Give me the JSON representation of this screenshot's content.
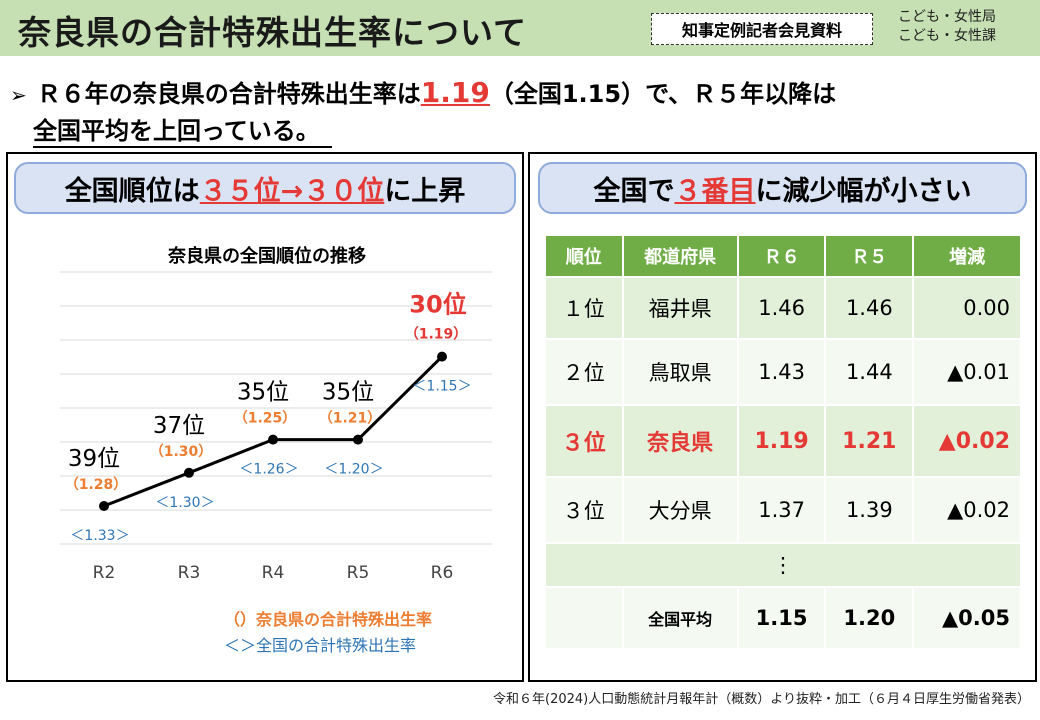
{
  "header": {
    "title": "奈良県の合計特殊出生率について",
    "badge": "知事定例記者会見資料",
    "dept_line1": "こども・女性局",
    "dept_line2": "こども・女性課"
  },
  "bullet": {
    "marker": "➢",
    "text_before": "Ｒ６年の奈良県の合計特殊出生率は",
    "highlight": "1.19",
    "text_after": "（全国1.15）で、Ｒ５年以降は",
    "line2": "全国平均を上回っている。"
  },
  "left_panel": {
    "heading_before": "全国順位は",
    "heading_highlight": "３５位→３０位",
    "heading_after": "に上昇",
    "legend_nara": "（）奈良県の合計特殊出生率",
    "legend_national": "＜＞全国の合計特殊出生率"
  },
  "chart_data": {
    "type": "line",
    "title": "奈良県の全国順位の推移",
    "categories": [
      "R2",
      "R3",
      "R4",
      "R5",
      "R6"
    ],
    "series": [
      {
        "rank_values": [
          39,
          37,
          35,
          35,
          30
        ],
        "rank_labels": [
          "39位",
          "37位",
          "35位",
          "35位",
          "30位"
        ],
        "nara_rate_labels": [
          "（1.28）",
          "（1.30）",
          "（1.25）",
          "（1.21）",
          "（1.19）"
        ],
        "national_rate_labels": [
          "＜1.33＞",
          "＜1.30＞",
          "＜1.26＞",
          "＜1.20＞",
          "＜1.15＞"
        ]
      }
    ],
    "grid": true,
    "line_color": "#000000",
    "nara_color": "#ed7d31",
    "national_color": "#2e75b6",
    "latest_color": "#e53935"
  },
  "right_panel": {
    "heading_before": "全国で",
    "heading_highlight": "３番目",
    "heading_after": "に減少幅が小さい",
    "columns": [
      "順位",
      "都道府県",
      "Ｒ６",
      "Ｒ５",
      "増減"
    ],
    "rows": [
      {
        "rank": "１位",
        "pref": "福井県",
        "r6": "1.46",
        "r5": "1.46",
        "diff": "0.00"
      },
      {
        "rank": "２位",
        "pref": "鳥取県",
        "r6": "1.43",
        "r5": "1.44",
        "diff": "▲0.01"
      },
      {
        "rank": "３位",
        "pref": "奈良県",
        "r6": "1.19",
        "r5": "1.21",
        "diff": "▲0.02"
      },
      {
        "rank": "３位",
        "pref": "大分県",
        "r6": "1.37",
        "r5": "1.39",
        "diff": "▲0.02"
      }
    ],
    "ellipsis": "⋮",
    "average": {
      "rank": "",
      "label": "全国平均",
      "r6": "1.15",
      "r5": "1.20",
      "diff": "▲0.05"
    }
  },
  "source": "令和６年(2024)人口動態統計月報年計（概数）より抜粋・加工（６月４日厚生労働省発表）"
}
